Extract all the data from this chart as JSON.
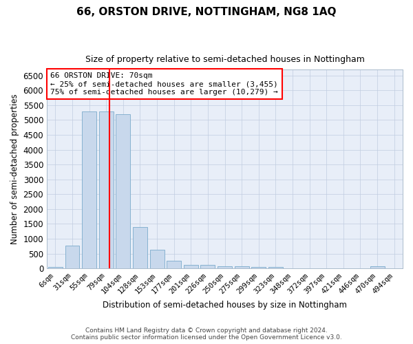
{
  "title": "66, ORSTON DRIVE, NOTTINGHAM, NG8 1AQ",
  "subtitle": "Size of property relative to semi-detached houses in Nottingham",
  "xlabel": "Distribution of semi-detached houses by size in Nottingham",
  "ylabel": "Number of semi-detached properties",
  "footer_line1": "Contains HM Land Registry data © Crown copyright and database right 2024.",
  "footer_line2": "Contains public sector information licensed under the Open Government Licence v3.0.",
  "annotation_line1": "66 ORSTON DRIVE: 70sqm",
  "annotation_line2": "← 25% of semi-detached houses are smaller (3,455)",
  "annotation_line3": "75% of semi-detached houses are larger (10,279) →",
  "bar_color": "#c8d8ec",
  "bar_edge_color": "#7aaacb",
  "plot_bg_color": "#e8eef8",
  "vline_color": "red",
  "grid_color": "#c0cce0",
  "categories": [
    "6sqm",
    "31sqm",
    "55sqm",
    "79sqm",
    "104sqm",
    "128sqm",
    "153sqm",
    "177sqm",
    "201sqm",
    "226sqm",
    "250sqm",
    "275sqm",
    "299sqm",
    "323sqm",
    "348sqm",
    "372sqm",
    "397sqm",
    "421sqm",
    "446sqm",
    "470sqm",
    "494sqm"
  ],
  "bar_values": [
    40,
    780,
    5300,
    5300,
    5200,
    1400,
    630,
    260,
    120,
    120,
    80,
    80,
    60,
    60,
    0,
    0,
    0,
    0,
    0,
    80,
    0
  ],
  "ylim": [
    0,
    6700
  ],
  "yticks": [
    0,
    500,
    1000,
    1500,
    2000,
    2500,
    3000,
    3500,
    4000,
    4500,
    5000,
    5500,
    6000,
    6500
  ],
  "vline_x": 3.2,
  "figsize": [
    6.0,
    5.0
  ],
  "dpi": 100,
  "fig_bg_color": "#ffffff"
}
